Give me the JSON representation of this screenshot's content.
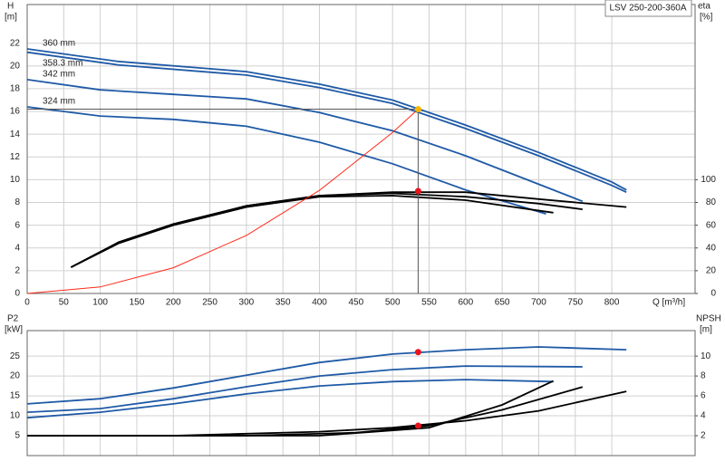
{
  "chart_data": [
    {
      "type": "line",
      "title": "LSV 250-200-360A",
      "ylabel": "H",
      "ylabel_unit": "[m]",
      "y2label": "eta",
      "y2label_unit": "[%]",
      "xlabel": "Q [m³/h]",
      "xlim": [
        0,
        914
      ],
      "xticks": [
        0,
        50,
        100,
        150,
        200,
        250,
        300,
        350,
        400,
        450,
        500,
        550,
        600,
        650,
        700,
        750,
        800
      ],
      "ylim": [
        0,
        25.4
      ],
      "yticks": [
        0,
        2,
        4,
        6,
        8,
        10,
        12,
        14,
        16,
        18,
        20,
        22
      ],
      "y2lim": [
        0,
        254
      ],
      "y2ticks": [
        0,
        20,
        40,
        60,
        80,
        100
      ],
      "grid": true,
      "series": [
        {
          "name": "360 mm",
          "color": "#1f5aa6",
          "x": [
            0,
            124,
            300,
            400,
            500,
            600,
            700,
            800,
            820
          ],
          "values": [
            21.5,
            20.4,
            19.5,
            18.4,
            17.0,
            14.8,
            12.4,
            9.8,
            9.1
          ]
        },
        {
          "name": "358.3 mm",
          "color": "#1f5aa6",
          "x": [
            0,
            124,
            300,
            400,
            500,
            600,
            700,
            800,
            820
          ],
          "values": [
            21.2,
            20.1,
            19.2,
            18.1,
            16.7,
            14.5,
            12.1,
            9.5,
            8.9
          ]
        },
        {
          "name": "342 mm",
          "color": "#1f5aa6",
          "x": [
            0,
            100,
            200,
            300,
            400,
            500,
            600,
            700,
            760
          ],
          "values": [
            18.8,
            17.9,
            17.5,
            17.1,
            15.9,
            14.3,
            12.1,
            9.6,
            8.1
          ]
        },
        {
          "name": "324 mm",
          "color": "#1f5aa6",
          "x": [
            0,
            100,
            200,
            300,
            400,
            500,
            600,
            710
          ],
          "values": [
            16.4,
            15.6,
            15.3,
            14.7,
            13.3,
            11.4,
            9.1,
            7.0
          ]
        },
        {
          "color": "#000000",
          "axis": "y2",
          "x": [
            60,
            125,
            200,
            300,
            400,
            500,
            600,
            700,
            820
          ],
          "values": [
            23,
            45,
            61,
            77,
            86,
            89,
            89,
            83,
            76
          ]
        },
        {
          "color": "#000000",
          "axis": "y2",
          "x": [
            60,
            125,
            200,
            300,
            400,
            500,
            600,
            700,
            760
          ],
          "values": [
            23,
            45,
            61,
            77,
            86,
            88,
            85,
            79,
            74
          ]
        },
        {
          "color": "#000000",
          "axis": "y2",
          "x": [
            60,
            125,
            200,
            300,
            400,
            500,
            600,
            720
          ],
          "values": [
            23,
            44,
            60,
            76,
            85,
            86,
            82,
            71
          ]
        },
        {
          "color": "#ff2a1a",
          "x": [
            0,
            100,
            200,
            300,
            400,
            500,
            535
          ],
          "values": [
            0,
            0.57,
            2.26,
            5.1,
            9.06,
            14.15,
            16.2
          ]
        }
      ],
      "points": [
        {
          "x": 535,
          "y": 16.2,
          "color": "#f5b800",
          "guide": true
        },
        {
          "x": 535,
          "y": 90,
          "axis": "y2",
          "color": "#e8141c"
        }
      ]
    },
    {
      "type": "line",
      "ylabel": "P2",
      "ylabel_unit": "[kW]",
      "y2label": "NPSH",
      "y2label_unit": "[m]",
      "xlim": [
        0,
        914
      ],
      "ylim": [
        0,
        31.4
      ],
      "yticks": [
        5,
        10,
        15,
        20,
        25
      ],
      "y2lim": [
        0,
        12.56
      ],
      "y2ticks": [
        2,
        4,
        6,
        8,
        10
      ],
      "grid": true,
      "series": [
        {
          "color": "#1f5aa6",
          "x": [
            0,
            100,
            200,
            300,
            400,
            500,
            600,
            700,
            820
          ],
          "values": [
            13.0,
            14.3,
            17.0,
            20.2,
            23.4,
            25.5,
            26.6,
            27.3,
            26.6
          ]
        },
        {
          "color": "#1f5aa6",
          "x": [
            0,
            100,
            200,
            300,
            400,
            500,
            600,
            760
          ],
          "values": [
            10.9,
            11.8,
            14.3,
            17.3,
            20.0,
            21.6,
            22.5,
            22.3
          ]
        },
        {
          "color": "#1f5aa6",
          "x": [
            0,
            100,
            200,
            300,
            400,
            500,
            600,
            720
          ],
          "values": [
            9.5,
            10.9,
            13.0,
            15.5,
            17.5,
            18.6,
            19.1,
            18.6
          ]
        },
        {
          "color": "#000000",
          "axis": "y2",
          "x": [
            0,
            200,
            400,
            500,
            600,
            700,
            820
          ],
          "values": [
            2.0,
            2.0,
            2.4,
            2.8,
            3.5,
            4.5,
            6.45
          ]
        },
        {
          "color": "#000000",
          "axis": "y2",
          "x": [
            0,
            300,
            450,
            550,
            650,
            760
          ],
          "values": [
            2.0,
            2.0,
            2.3,
            3.0,
            4.6,
            6.9
          ]
        },
        {
          "color": "#000000",
          "axis": "y2",
          "x": [
            0,
            400,
            550,
            650,
            720
          ],
          "values": [
            2.0,
            2.0,
            2.8,
            5.1,
            7.5
          ]
        }
      ],
      "points": [
        {
          "x": 535,
          "y": 26,
          "color": "#e8141c"
        },
        {
          "x": 535,
          "y": 3.0,
          "axis": "y2",
          "color": "#e8141c"
        }
      ]
    }
  ]
}
